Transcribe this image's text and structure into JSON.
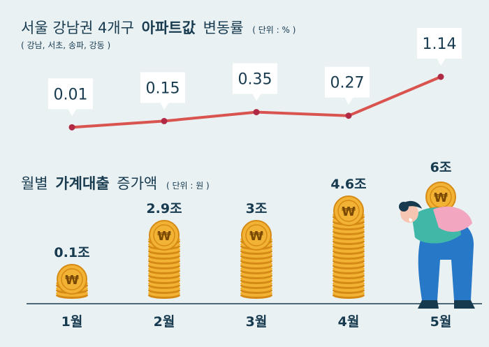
{
  "title": {
    "prefix": "서울 강남권 4개구",
    "emphasis": "아파트값",
    "suffix": "변동률",
    "unit": "( 단위 : % )",
    "subtitle": "( 강남, 서초, 송파, 강동 )"
  },
  "chart2_title": {
    "prefix": "월별",
    "emphasis": "가계대출",
    "suffix": "증가액",
    "unit": "( 단위 : 원 )"
  },
  "colors": {
    "background": "#e9f1f3",
    "text": "#173a4f",
    "line": "#d9534f",
    "point": "#b02a45",
    "coin": "#f2b233",
    "coin_dark": "#d68a16",
    "axis": "#173a4f"
  },
  "chart_data": [
    {
      "type": "line",
      "title": "서울 강남권 4개구 아파트값 변동률",
      "categories": [
        "1월",
        "2월",
        "3월",
        "4월",
        "5월"
      ],
      "values": [
        0.01,
        0.15,
        0.35,
        0.27,
        1.14
      ],
      "labels": [
        "0.01",
        "0.15",
        "0.35",
        "0.27",
        "1.14"
      ]
    },
    {
      "type": "bar",
      "title": "월별 가계대출 증가액",
      "categories": [
        "1월",
        "2월",
        "3월",
        "4월",
        "5월"
      ],
      "values": [
        0.1,
        2.9,
        3,
        4.6,
        6
      ],
      "labels": [
        "0.1조",
        "2.9조",
        "3조",
        "4.6조",
        "6조"
      ]
    }
  ]
}
